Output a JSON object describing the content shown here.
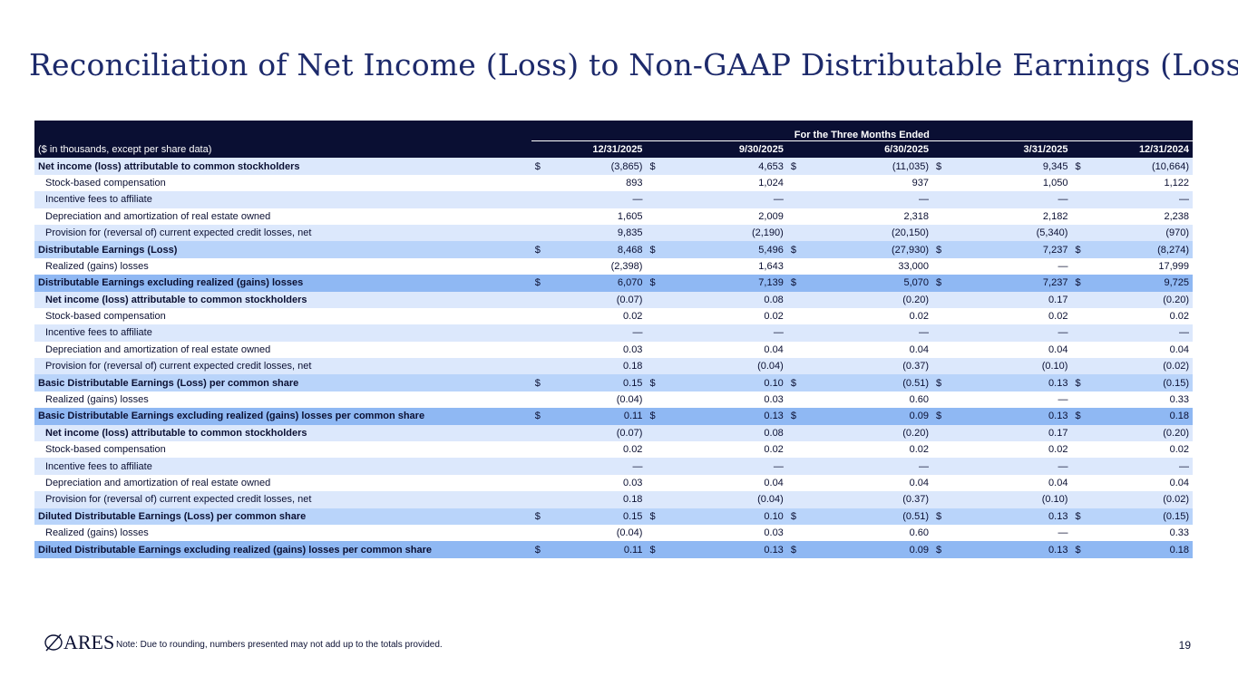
{
  "title": "Reconciliation of Net Income (Loss) to Non-GAAP Distributable Earnings (Loss)",
  "table": {
    "period_header": "For the Three Months Ended",
    "unit_note": "($ in thousands, except per share data)",
    "columns": [
      "12/31/2025",
      "9/30/2025",
      "6/30/2025",
      "3/31/2025",
      "12/31/2024"
    ],
    "rows": [
      {
        "label": "Net income (loss) attributable to common stockholders",
        "style": "light",
        "bold": true,
        "indent": false,
        "dollar": true,
        "values": [
          "(3,865)",
          "4,653",
          "(11,035)",
          "9,345",
          "(10,664)"
        ]
      },
      {
        "label": "Stock-based compensation",
        "style": "white",
        "bold": false,
        "indent": true,
        "dollar": false,
        "values": [
          "893",
          "1,024",
          "937",
          "1,050",
          "1,122"
        ]
      },
      {
        "label": "Incentive fees to affiliate",
        "style": "light",
        "bold": false,
        "indent": true,
        "dollar": false,
        "values": [
          "—",
          "—",
          "—",
          "—",
          "—"
        ]
      },
      {
        "label": "Depreciation and amortization of real estate owned",
        "style": "white",
        "bold": false,
        "indent": true,
        "dollar": false,
        "values": [
          "1,605",
          "2,009",
          "2,318",
          "2,182",
          "2,238"
        ]
      },
      {
        "label": "Provision for (reversal of) current expected credit losses, net",
        "style": "light",
        "bold": false,
        "indent": true,
        "dollar": false,
        "values": [
          "9,835",
          "(2,190)",
          "(20,150)",
          "(5,340)",
          "(970)"
        ]
      },
      {
        "label": "Distributable Earnings (Loss)",
        "style": "total",
        "bold": true,
        "indent": false,
        "dollar": true,
        "values": [
          "8,468",
          "5,496",
          "(27,930)",
          "7,237",
          "(8,274)"
        ]
      },
      {
        "label": "Realized (gains) losses",
        "style": "white",
        "bold": false,
        "indent": true,
        "dollar": false,
        "values": [
          "(2,398)",
          "1,643",
          "33,000",
          "—",
          "17,999"
        ]
      },
      {
        "label": "Distributable Earnings excluding realized (gains) losses",
        "style": "excl",
        "bold": true,
        "indent": false,
        "dollar": true,
        "values": [
          "6,070",
          "7,139",
          "5,070",
          "7,237",
          "9,725"
        ]
      },
      {
        "label": "Net income (loss) attributable to common stockholders",
        "style": "light",
        "bold": true,
        "indent": true,
        "dollar": false,
        "values": [
          "(0.07)",
          "0.08",
          "(0.20)",
          "0.17",
          "(0.20)"
        ]
      },
      {
        "label": "Stock-based compensation",
        "style": "white",
        "bold": false,
        "indent": true,
        "dollar": false,
        "values": [
          "0.02",
          "0.02",
          "0.02",
          "0.02",
          "0.02"
        ]
      },
      {
        "label": "Incentive fees to affiliate",
        "style": "light",
        "bold": false,
        "indent": true,
        "dollar": false,
        "values": [
          "—",
          "—",
          "—",
          "—",
          "—"
        ]
      },
      {
        "label": "Depreciation and amortization of real estate owned",
        "style": "white",
        "bold": false,
        "indent": true,
        "dollar": false,
        "values": [
          "0.03",
          "0.04",
          "0.04",
          "0.04",
          "0.04"
        ]
      },
      {
        "label": "Provision for (reversal of) current expected credit losses, net",
        "style": "light",
        "bold": false,
        "indent": true,
        "dollar": false,
        "values": [
          "0.18",
          "(0.04)",
          "(0.37)",
          "(0.10)",
          "(0.02)"
        ]
      },
      {
        "label": "Basic Distributable Earnings (Loss) per common share",
        "style": "total",
        "bold": true,
        "indent": false,
        "dollar": true,
        "values": [
          "0.15",
          "0.10",
          "(0.51)",
          "0.13",
          "(0.15)"
        ]
      },
      {
        "label": "Realized (gains) losses",
        "style": "white",
        "bold": false,
        "indent": true,
        "dollar": false,
        "values": [
          "(0.04)",
          "0.03",
          "0.60",
          "—",
          "0.33"
        ]
      },
      {
        "label": "Basic Distributable Earnings excluding realized (gains) losses per common share",
        "style": "excl",
        "bold": true,
        "indent": false,
        "dollar": true,
        "values": [
          "0.11",
          "0.13",
          "0.09",
          "0.13",
          "0.18"
        ]
      },
      {
        "label": "Net income (loss) attributable to common stockholders",
        "style": "light",
        "bold": true,
        "indent": true,
        "dollar": false,
        "values": [
          "(0.07)",
          "0.08",
          "(0.20)",
          "0.17",
          "(0.20)"
        ]
      },
      {
        "label": "Stock-based compensation",
        "style": "white",
        "bold": false,
        "indent": true,
        "dollar": false,
        "values": [
          "0.02",
          "0.02",
          "0.02",
          "0.02",
          "0.02"
        ]
      },
      {
        "label": "Incentive fees to affiliate",
        "style": "light",
        "bold": false,
        "indent": true,
        "dollar": false,
        "values": [
          "—",
          "—",
          "—",
          "—",
          "—"
        ]
      },
      {
        "label": "Depreciation and amortization of real estate owned",
        "style": "white",
        "bold": false,
        "indent": true,
        "dollar": false,
        "values": [
          "0.03",
          "0.04",
          "0.04",
          "0.04",
          "0.04"
        ]
      },
      {
        "label": "Provision for (reversal of) current expected credit losses, net",
        "style": "light",
        "bold": false,
        "indent": true,
        "dollar": false,
        "values": [
          "0.18",
          "(0.04)",
          "(0.37)",
          "(0.10)",
          "(0.02)"
        ]
      },
      {
        "label": "Diluted Distributable Earnings (Loss) per common share",
        "style": "total",
        "bold": true,
        "indent": false,
        "dollar": true,
        "values": [
          "0.15",
          "0.10",
          "(0.51)",
          "0.13",
          "(0.15)"
        ]
      },
      {
        "label": "Realized (gains) losses",
        "style": "white",
        "bold": false,
        "indent": true,
        "dollar": false,
        "values": [
          "(0.04)",
          "0.03",
          "0.60",
          "—",
          "0.33"
        ]
      },
      {
        "label": "Diluted Distributable Earnings excluding realized (gains) losses per common share",
        "style": "excl",
        "bold": true,
        "indent": false,
        "dollar": true,
        "values": [
          "0.11",
          "0.13",
          "0.09",
          "0.13",
          "0.18"
        ]
      }
    ],
    "currency_symbol": "$"
  },
  "footer": {
    "logo": "ARES",
    "note": "Note: Due to rounding, numbers presented may not add up to the totals provided.",
    "page": "19"
  }
}
